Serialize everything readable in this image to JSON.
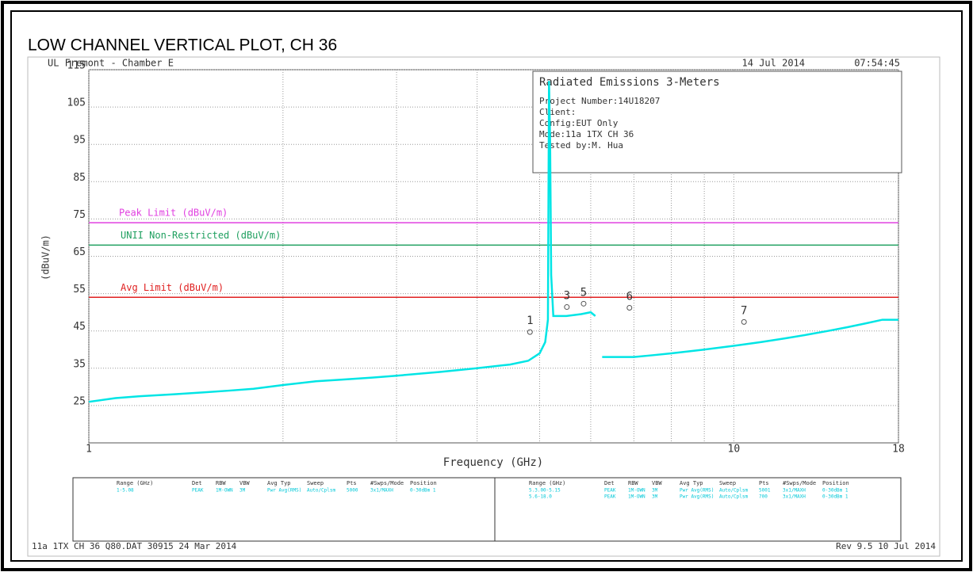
{
  "chart_data": {
    "type": "line",
    "title": "LOW CHANNEL VERTICAL PLOT, CH 36",
    "site": "UL Fremont - Chamber E",
    "date": "14 Jul 2014",
    "time": "07:54:45",
    "info": {
      "heading": "Radiated Emissions 3-Meters",
      "lines": [
        "Project Number:14U18207",
        "Client:",
        "Config:EUT Only",
        "Mode:11a 1TX CH 36",
        "Tested by:M. Hua"
      ]
    },
    "y_label": "(dBuV/m)",
    "x_label": "Frequency (GHz)",
    "log_x": true,
    "grid": true,
    "xlim": [
      1,
      18
    ],
    "xticks": [
      1,
      10,
      18
    ],
    "xgrid": [
      2,
      3,
      4,
      5,
      6,
      7,
      8,
      9
    ],
    "ylim": [
      15,
      115
    ],
    "yticks": [
      25,
      35,
      45,
      55,
      65,
      75,
      85,
      95,
      105,
      115
    ],
    "x": [
      1,
      1.1,
      1.2,
      1.35,
      1.5,
      1.65,
      1.8,
      2.0,
      2.25,
      2.5,
      2.75,
      3.0,
      3.5,
      4.0,
      4.5,
      4.8,
      5.0,
      5.1,
      5.15,
      5.17,
      5.19,
      5.21,
      5.25,
      5.5,
      5.8,
      6.0,
      6.1,
      6.15,
      6.25,
      6.5,
      7,
      7.5,
      8,
      9,
      10,
      11,
      12,
      13,
      14,
      15,
      16,
      17,
      18
    ],
    "series": [
      {
        "color": "#00e5e5",
        "values": [
          26,
          27,
          27.5,
          28,
          28.5,
          29,
          29.5,
          30.5,
          31.5,
          32,
          32.5,
          33,
          34,
          35,
          36,
          37,
          39,
          42,
          48,
          112,
          96,
          60,
          49,
          49,
          49.5,
          50,
          49,
          null,
          38,
          38,
          38,
          38.5,
          39,
          40,
          41,
          42,
          43,
          44,
          45,
          46,
          47,
          48,
          48
        ]
      }
    ],
    "limits": [
      {
        "name": "Peak Limit (dBuV/m)",
        "color": "#e040e0",
        "value": 74
      },
      {
        "name": "UNII Non-Restricted (dBuV/m)",
        "color": "#20a060",
        "value": 68
      },
      {
        "name": "Avg Limit (dBuV/m)",
        "color": "#e02020",
        "value": 54
      }
    ],
    "markers": [
      {
        "label": "1",
        "x": 4.83,
        "value": 44.7
      },
      {
        "label": "3",
        "x": 5.51,
        "value": 51.4
      },
      {
        "label": "5",
        "x": 5.85,
        "value": 52.3
      },
      {
        "label": "6",
        "x": 6.89,
        "value": 51.2
      },
      {
        "label": "7",
        "x": 10.37,
        "value": 47.4
      }
    ],
    "table": {
      "columns": [
        "Range (GHz)",
        "Det",
        "RBW",
        "VBW",
        "Avg Typ",
        "Sweep",
        "Pts",
        "#Swps/Mode",
        "Position"
      ],
      "left_rows": [
        [
          "1-5.08",
          "PEAK",
          "1M-OWN",
          "3M",
          "Pwr Avg(RMS)",
          "Auto/Cplsm",
          "5000",
          "3x1/MAXH",
          "0-30dBm 1"
        ]
      ],
      "right_rows": [
        [
          "5.3.00-5.15",
          "PEAK",
          "1M-OWN",
          "3M",
          "Pwr Avg(RMS)",
          "Auto/Cplsm",
          "5001",
          "3x1/MAXH",
          "0-30dBm 1"
        ],
        [
          "5.6-18.0",
          "PEAK",
          "1M-OWN",
          "3M",
          "Pwr Avg(RMS)",
          "Auto/Cplsm",
          "700",
          "3x1/MAXH",
          "0-30dBm 1"
        ]
      ]
    },
    "footer_left": "11a 1TX CH 36 Q80.DAT 30915 24 Mar 2014",
    "footer_right": "Rev 9.5 10 Jul 2014"
  }
}
